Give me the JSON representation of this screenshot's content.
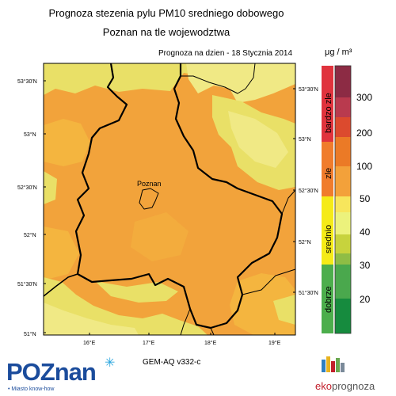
{
  "title_line1": "Prognoza stezenia pylu PM10 sredniego dobowego",
  "title_line2": "Poznan na tle wojewodztwa",
  "forecast_date": "Prognoza na dzien -  18 Stycznia 2014",
  "unit": "μg / m³",
  "model_label": "GEM-AQ v332-c",
  "city_label": "Poznan",
  "lat_left_labels": [
    "53°30'N",
    "53°N",
    "52°30'N",
    "52°N",
    "51°30'N",
    "51°N"
  ],
  "lat_right_labels": [
    "53°30'N",
    "53°N",
    "52°30'N",
    "52°N",
    "51°30'N"
  ],
  "lon_labels": [
    "16°E",
    "17°E",
    "18°E",
    "19°E"
  ],
  "legend": {
    "categories": [
      "bardzo zle",
      "zle",
      "srednio",
      "dobrze"
    ],
    "ticks": [
      "300",
      "200",
      "100",
      "50",
      "40",
      "30",
      "20"
    ],
    "category_colors": [
      "#e0333d",
      "#f07c2c",
      "#f5eb17",
      "#4cae4c"
    ],
    "scale_colors": [
      "#8c2b44",
      "#b93a4e",
      "#dc4a2e",
      "#eb7a26",
      "#f3a13a",
      "#f7e65c",
      "#ecf27c",
      "#c7d33d",
      "#8fbd45",
      "#4aa84d",
      "#168b3e"
    ]
  },
  "map_colors": {
    "orange": "#f2a33b",
    "light_orange": "#f4b53f",
    "yellow": "#e9e067",
    "pale_yellow": "#f0e985",
    "green_yellow": "#cdd85b"
  },
  "logos": {
    "poznan_word": "POZnan",
    "poznan_tag": "• Miasto know-how",
    "eko_part1": "eko",
    "eko_part2": "prognoza"
  }
}
